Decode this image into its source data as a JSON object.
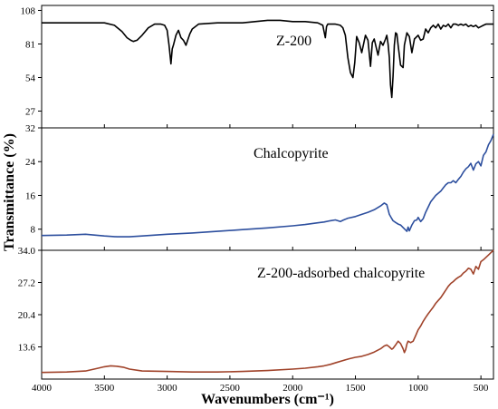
{
  "chart_data": {
    "type": "line",
    "xlabel": "Wavenumbers (cm⁻¹)",
    "ylabel": "Transmittance (%)",
    "xlim": [
      4000,
      400
    ],
    "x_ticks": [
      4000,
      3500,
      3000,
      2500,
      2000,
      1500,
      1000,
      500
    ],
    "panels": [
      {
        "label": "Z-200",
        "color": "#000000",
        "ylim": [
          13.5,
          112
        ],
        "y_ticks": [
          27,
          54,
          81,
          108
        ],
        "y_tick_labels": [
          "27",
          "54",
          "81",
          "108"
        ],
        "x": [
          4000,
          3700,
          3500,
          3420,
          3360,
          3320,
          3290,
          3270,
          3240,
          3200,
          3150,
          3100,
          3050,
          3020,
          3000,
          2985,
          2970,
          2960,
          2950,
          2930,
          2910,
          2890,
          2870,
          2850,
          2820,
          2800,
          2750,
          2600,
          2400,
          2200,
          2100,
          2000,
          1900,
          1800,
          1760,
          1740,
          1730,
          1720,
          1700,
          1660,
          1620,
          1600,
          1580,
          1560,
          1540,
          1520,
          1505,
          1490,
          1470,
          1450,
          1420,
          1400,
          1380,
          1365,
          1350,
          1320,
          1300,
          1280,
          1260,
          1250,
          1240,
          1230,
          1220,
          1210,
          1200,
          1190,
          1180,
          1170,
          1160,
          1140,
          1120,
          1110,
          1090,
          1070,
          1050,
          1030,
          1000,
          980,
          960,
          940,
          920,
          900,
          880,
          860,
          840,
          820,
          800,
          780,
          760,
          740,
          720,
          700,
          680,
          660,
          640,
          620,
          600,
          580,
          560,
          540,
          520,
          500,
          480,
          460,
          440,
          420,
          400
        ],
        "y": [
          98,
          98,
          98,
          96,
          91,
          86,
          84,
          83,
          84,
          88,
          94,
          97,
          97,
          96,
          92,
          80,
          65,
          77,
          80,
          88,
          92,
          86,
          84,
          80,
          89,
          93,
          97,
          98,
          98,
          100,
          100,
          99,
          99,
          98,
          96,
          86,
          95,
          97,
          97,
          97,
          96,
          94,
          88,
          70,
          58,
          54,
          66,
          87,
          82,
          74,
          88,
          84,
          63,
          82,
          85,
          72,
          83,
          80,
          85,
          88,
          81,
          70,
          48,
          38,
          55,
          80,
          90,
          89,
          80,
          64,
          62,
          80,
          90,
          87,
          74,
          85,
          88,
          84,
          85,
          93,
          90,
          94,
          96,
          94,
          97,
          93,
          96,
          95,
          97,
          94,
          97,
          97,
          96,
          97,
          96,
          97,
          95,
          96,
          95,
          96,
          94,
          95,
          96,
          97,
          97,
          97,
          97
        ]
      },
      {
        "label": "Chalcopyrite",
        "color": "#2d4f9e",
        "ylim": [
          3,
          32
        ],
        "y_ticks": [
          8,
          16,
          24,
          32
        ],
        "y_tick_labels": [
          "8",
          "16",
          "24",
          "32"
        ],
        "x": [
          4000,
          3800,
          3650,
          3500,
          3400,
          3300,
          3200,
          3000,
          2800,
          2600,
          2400,
          2200,
          2000,
          1900,
          1800,
          1750,
          1700,
          1660,
          1620,
          1600,
          1560,
          1500,
          1450,
          1400,
          1350,
          1300,
          1270,
          1250,
          1230,
          1210,
          1200,
          1180,
          1160,
          1140,
          1120,
          1100,
          1090,
          1080,
          1070,
          1050,
          1030,
          1010,
          1000,
          980,
          960,
          940,
          900,
          860,
          820,
          800,
          780,
          760,
          740,
          720,
          700,
          680,
          660,
          640,
          620,
          600,
          580,
          560,
          540,
          520,
          500,
          480,
          460,
          440,
          420,
          400
        ],
        "y": [
          6.5,
          6.6,
          6.8,
          6.4,
          6.2,
          6.2,
          6.4,
          6.8,
          7.1,
          7.5,
          7.9,
          8.3,
          8.8,
          9.1,
          9.5,
          9.7,
          10.0,
          10.2,
          9.8,
          10.1,
          10.6,
          11.0,
          11.5,
          12.0,
          12.6,
          13.5,
          14.2,
          13.8,
          11.5,
          10.5,
          10.0,
          9.6,
          9.2,
          9.0,
          8.4,
          7.8,
          7.5,
          8.5,
          7.6,
          9.0,
          10.0,
          10.2,
          10.8,
          9.8,
          10.5,
          12.0,
          14.5,
          16.0,
          17.0,
          17.8,
          18.5,
          19.0,
          19.0,
          19.5,
          19.0,
          19.8,
          20.5,
          21.5,
          22.3,
          22.8,
          23.6,
          22.0,
          23.5,
          24.0,
          23.0,
          25.5,
          26.3,
          28.0,
          29.0,
          30.5
        ]
      },
      {
        "label": "Z-200-adsorbed chalcopyrite",
        "color": "#a0432a",
        "ylim": [
          6.8,
          34
        ],
        "y_ticks": [
          13.6,
          20.4,
          27.2,
          34.0
        ],
        "y_tick_labels": [
          "13.6",
          "20.4",
          "27.2",
          "34.0"
        ],
        "x": [
          4000,
          3800,
          3650,
          3550,
          3500,
          3450,
          3400,
          3350,
          3300,
          3200,
          3000,
          2800,
          2600,
          2400,
          2200,
          2000,
          1900,
          1800,
          1750,
          1700,
          1650,
          1600,
          1550,
          1500,
          1450,
          1400,
          1350,
          1300,
          1270,
          1250,
          1230,
          1210,
          1200,
          1180,
          1160,
          1140,
          1120,
          1110,
          1100,
          1090,
          1080,
          1060,
          1040,
          1020,
          1000,
          980,
          960,
          940,
          920,
          900,
          880,
          860,
          840,
          820,
          800,
          780,
          760,
          740,
          720,
          700,
          680,
          660,
          640,
          620,
          600,
          580,
          560,
          540,
          520,
          500,
          480,
          460,
          440,
          420,
          400
        ],
        "y": [
          8.2,
          8.3,
          8.5,
          9.1,
          9.4,
          9.6,
          9.5,
          9.3,
          8.9,
          8.5,
          8.4,
          8.3,
          8.3,
          8.4,
          8.6,
          8.9,
          9.1,
          9.4,
          9.6,
          9.9,
          10.3,
          10.7,
          11.1,
          11.4,
          11.6,
          12.0,
          12.5,
          13.2,
          13.8,
          14.0,
          13.6,
          13.1,
          13.3,
          14.0,
          14.8,
          14.3,
          13.2,
          12.4,
          13.0,
          14.2,
          14.8,
          14.5,
          14.8,
          16.0,
          17.2,
          18.0,
          19.0,
          19.8,
          20.6,
          21.3,
          22.0,
          22.8,
          23.4,
          24.0,
          24.8,
          25.6,
          26.4,
          27.0,
          27.4,
          27.9,
          28.3,
          28.6,
          29.2,
          29.6,
          30.2,
          30.0,
          29.0,
          30.6,
          30.0,
          31.6,
          32.0,
          32.5,
          33.0,
          33.5,
          34.0
        ]
      }
    ]
  }
}
